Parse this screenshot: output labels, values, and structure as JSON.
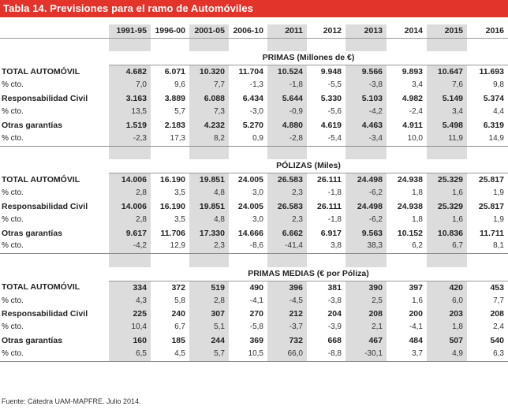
{
  "title": "Tabla 14.  Previsiones para el ramo de Automóviles",
  "years": [
    "1991-95",
    "1996-00",
    "2001-05",
    "2006-10",
    "2011",
    "2012",
    "2013",
    "2014",
    "2015",
    "2016"
  ],
  "sections": [
    {
      "title": "PRIMAS (Millones de €)",
      "rows": [
        {
          "label": "TOTAL AUTOMÓVIL",
          "bold": true,
          "values": [
            "4.682",
            "6.071",
            "10.320",
            "11.704",
            "10.524",
            "9.948",
            "9.566",
            "9.893",
            "10.647",
            "11.693"
          ]
        },
        {
          "label": "% cto.",
          "bold": false,
          "values": [
            "7,0",
            "9,6",
            "7,7",
            "-1,3",
            "-1,8",
            "-5,5",
            "-3,8",
            "3,4",
            "7,6",
            "9,8"
          ]
        },
        {
          "label": "Responsabilidad Civil",
          "bold": true,
          "values": [
            "3.163",
            "3.889",
            "6.088",
            "6.434",
            "5.644",
            "5.330",
            "5.103",
            "4.982",
            "5.149",
            "5.374"
          ]
        },
        {
          "label": "% cto.",
          "bold": false,
          "values": [
            "13,5",
            "5,7",
            "7,3",
            "-3,0",
            "-0,9",
            "-5,6",
            "-4,2",
            "-2,4",
            "3,4",
            "4,4"
          ]
        },
        {
          "label": "Otras garantías",
          "bold": true,
          "values": [
            "1.519",
            "2.183",
            "4.232",
            "5.270",
            "4.880",
            "4.619",
            "4.463",
            "4.911",
            "5.498",
            "6.319"
          ]
        },
        {
          "label": "% cto.",
          "bold": false,
          "values": [
            "-2,3",
            "17,3",
            "8,2",
            "0,9",
            "-2,8",
            "-5,4",
            "-3,4",
            "10,0",
            "11,9",
            "14,9"
          ]
        }
      ]
    },
    {
      "title": "PÓLIZAS (Miles)",
      "rows": [
        {
          "label": "TOTAL AUTOMÓVIL",
          "bold": true,
          "values": [
            "14.006",
            "16.190",
            "19.851",
            "24.005",
            "26.583",
            "26.111",
            "24.498",
            "24.938",
            "25.329",
            "25.817"
          ]
        },
        {
          "label": "% cto.",
          "bold": false,
          "values": [
            "2,8",
            "3,5",
            "4,8",
            "3,0",
            "2,3",
            "-1,8",
            "-6,2",
            "1,8",
            "1,6",
            "1,9"
          ]
        },
        {
          "label": "Responsabilidad Civil",
          "bold": true,
          "values": [
            "14.006",
            "16.190",
            "19.851",
            "24.005",
            "26.583",
            "26.111",
            "24.498",
            "24.938",
            "25.329",
            "25.817"
          ]
        },
        {
          "label": "% cto.",
          "bold": false,
          "values": [
            "2,8",
            "3,5",
            "4,8",
            "3,0",
            "2,3",
            "-1,8",
            "-6,2",
            "1,8",
            "1,6",
            "1,9"
          ]
        },
        {
          "label": "Otras garantías",
          "bold": true,
          "values": [
            "9.617",
            "11.706",
            "17.330",
            "14.666",
            "6.662",
            "6.917",
            "9.563",
            "10.152",
            "10.836",
            "11.711"
          ]
        },
        {
          "label": "% cto.",
          "bold": false,
          "values": [
            "-4,2",
            "12,9",
            "2,3",
            "-8,6",
            "-41,4",
            "3,8",
            "38,3",
            "6,2",
            "6,7",
            "8,1"
          ]
        }
      ]
    },
    {
      "title": "PRIMAS MEDIAS (€ por Póliza)",
      "rows": [
        {
          "label": "TOTAL AUTOMÓVIL",
          "bold": true,
          "values": [
            "334",
            "372",
            "519",
            "490",
            "396",
            "381",
            "390",
            "397",
            "420",
            "453"
          ]
        },
        {
          "label": "% cto.",
          "bold": false,
          "values": [
            "4,3",
            "5,8",
            "2,8",
            "-4,1",
            "-4,5",
            "-3,8",
            "2,5",
            "1,6",
            "6,0",
            "7,7"
          ]
        },
        {
          "label": "Responsabilidad Civil",
          "bold": true,
          "values": [
            "225",
            "240",
            "307",
            "270",
            "212",
            "204",
            "208",
            "200",
            "203",
            "208"
          ]
        },
        {
          "label": "% cto.",
          "bold": false,
          "values": [
            "10,4",
            "6,7",
            "5,1",
            "-5,8",
            "-3,7",
            "-3,9",
            "2,1",
            "-4,1",
            "1,8",
            "2,4"
          ]
        },
        {
          "label": "Otras garantías",
          "bold": true,
          "values": [
            "160",
            "185",
            "244",
            "369",
            "732",
            "668",
            "467",
            "484",
            "507",
            "540"
          ]
        },
        {
          "label": "% cto.",
          "bold": false,
          "values": [
            "6,5",
            "4,5",
            "5,7",
            "10,5",
            "66,0",
            "-8,8",
            "-30,1",
            "3,7",
            "4,9",
            "6,3"
          ]
        }
      ]
    }
  ],
  "footer": "Fuente: Cátedra UAM-MAPFRE. Julio 2014.",
  "colors": {
    "title_bar": "#e3342c",
    "column_shade": "#dcdcdc",
    "rule": "#9a9a9a"
  }
}
